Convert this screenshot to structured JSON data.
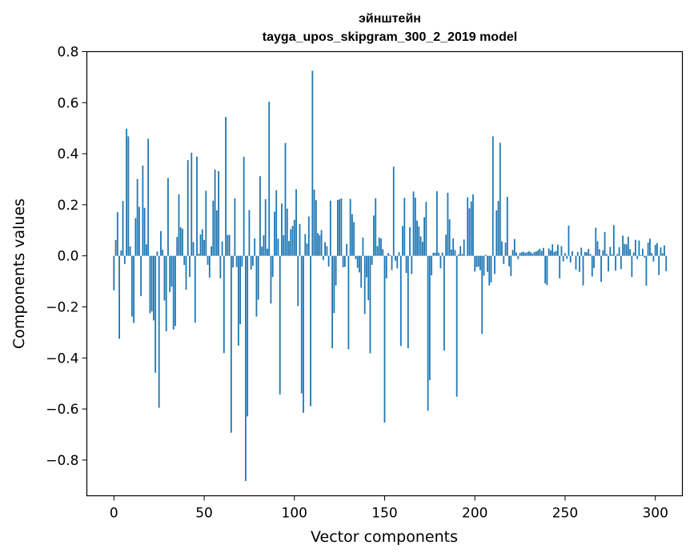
{
  "chart_data": {
    "type": "bar",
    "title": "эйнштейн",
    "subtitle": "tayga_upos_skipgram_300_2_2019 model",
    "xlabel": "Vector components",
    "ylabel": "Components values",
    "xlim": [
      -15,
      315
    ],
    "ylim": [
      -0.94,
      0.8
    ],
    "xticks": [
      0,
      50,
      100,
      150,
      200,
      250,
      300
    ],
    "yticks": [
      -0.8,
      -0.6,
      -0.4,
      -0.2,
      0.0,
      0.2,
      0.4,
      0.6,
      0.8
    ],
    "ytick_labels": [
      "−0.8",
      "−0.6",
      "−0.4",
      "−0.2",
      "0.0",
      "0.2",
      "0.4",
      "0.6",
      "0.8"
    ],
    "bar_color": "#1f77b4",
    "values": [
      -0.135,
      0.062,
      0.171,
      -0.325,
      0.021,
      0.215,
      -0.032,
      0.498,
      0.468,
      0.037,
      -0.238,
      -0.263,
      0.148,
      0.301,
      0.192,
      -0.158,
      0.354,
      0.188,
      0.045,
      0.459,
      -0.225,
      -0.218,
      -0.253,
      -0.458,
      0.017,
      -0.595,
      0.097,
      0.024,
      -0.175,
      -0.296,
      0.305,
      -0.142,
      -0.121,
      -0.289,
      -0.275,
      0.074,
      0.241,
      0.112,
      0.106,
      -0.036,
      -0.133,
      0.375,
      -0.083,
      0.404,
      0.054,
      -0.262,
      0.389,
      0.008,
      0.084,
      0.104,
      0.062,
      0.255,
      -0.035,
      -0.085,
      0.037,
      0.216,
      0.338,
      0.178,
      0.332,
      -0.088,
      0.057,
      -0.381,
      0.544,
      0.082,
      0.082,
      -0.693,
      -0.046,
      0.225,
      -0.044,
      -0.352,
      -0.268,
      -0.042,
      0.388,
      -0.882,
      -0.629,
      0.179,
      -0.054,
      -0.039,
      0.068,
      -0.238,
      -0.172,
      0.312,
      0.036,
      0.081,
      0.222,
      0.028,
      0.604,
      -0.187,
      -0.083,
      0.173,
      0.257,
      0.067,
      -0.543,
      0.205,
      0.081,
      0.442,
      0.185,
      0.058,
      0.104,
      0.117,
      0.141,
      0.261,
      -0.197,
      0.125,
      -0.539,
      -0.615,
      0.085,
      0.048,
      0.154,
      -0.589,
      0.725,
      0.259,
      0.218,
      0.089,
      0.081,
      0.101,
      -0.017,
      0.054,
      0.038,
      -0.042,
      0.216,
      -0.362,
      -0.224,
      -0.116,
      0.219,
      0.221,
      0.225,
      -0.045,
      -0.043,
      0.047,
      -0.366,
      0.223,
      0.163,
      0.132,
      -0.013,
      -0.047,
      -0.065,
      -0.125,
      0.072,
      -0.228,
      -0.084,
      -0.174,
      -0.382,
      -0.035,
      0.158,
      0.226,
      0.038,
      0.072,
      0.068,
      0.026,
      -0.653,
      -0.088,
      0.011,
      0.003,
      -0.056,
      0.349,
      -0.019,
      -0.049,
      0.014,
      -0.353,
      0.117,
      0.227,
      -0.067,
      -0.362,
      0.112,
      -0.071,
      0.252,
      0.228,
      0.138,
      0.115,
      0.076,
      0.055,
      0.151,
      0.211,
      -0.607,
      -0.487,
      -0.076,
      0.012,
      0.012,
      0.253,
      0.012,
      -0.049,
      0.013,
      -0.371,
      0.083,
      0.247,
      0.143,
      0.025,
      0.068,
      0.023,
      -0.552,
      0.005,
      0.038,
      0.007,
      0.064,
      -0.001,
      0.229,
      0.186,
      0.213,
      0.241,
      -0.062,
      -0.044,
      -0.043,
      -0.056,
      -0.306,
      -0.078,
      0.004,
      -0.063,
      -0.116,
      -0.104,
      0.468,
      -0.071,
      0.178,
      0.215,
      0.443,
      0.057,
      -0.032,
      0.052,
      0.231,
      -0.041,
      -0.079,
      0.023,
      0.066,
      0.013,
      -0.013,
      0.011,
      0.014,
      0.016,
      0.012,
      0.014,
      0.018,
      0.014,
      0.009,
      0.015,
      0.017,
      0.022,
      0.028,
      0.019,
      0.031,
      -0.108,
      -0.115,
      0.029,
      0.021,
      0.045,
      0.015,
      0.019,
      0.044,
      -0.088,
      0.038,
      -0.022,
      0.011,
      -0.012,
      0.118,
      -0.026,
      0.018,
      0.0,
      -0.054,
      0.015,
      -0.063,
      0.032,
      -0.116,
      0.015,
      0.014,
      0.027,
      0.007,
      -0.081,
      -0.048,
      0.11,
      0.057,
      0.026,
      -0.102,
      0.022,
      0.093,
      0.007,
      -0.061,
      0.035,
      0.006,
      0.12,
      -0.058,
      0.007,
      0.034,
      -0.052,
      0.079,
      0.047,
      0.045,
      0.075,
      0.026,
      -0.083,
      0.013,
      0.063,
      -0.012,
      0.06,
      0.003,
      0.028,
      -0.006,
      -0.117,
      0.052,
      0.067,
      0.011,
      -0.022,
      0.043,
      0.05,
      -0.075,
      0.033,
      0.01,
      0.041,
      -0.06
    ]
  }
}
